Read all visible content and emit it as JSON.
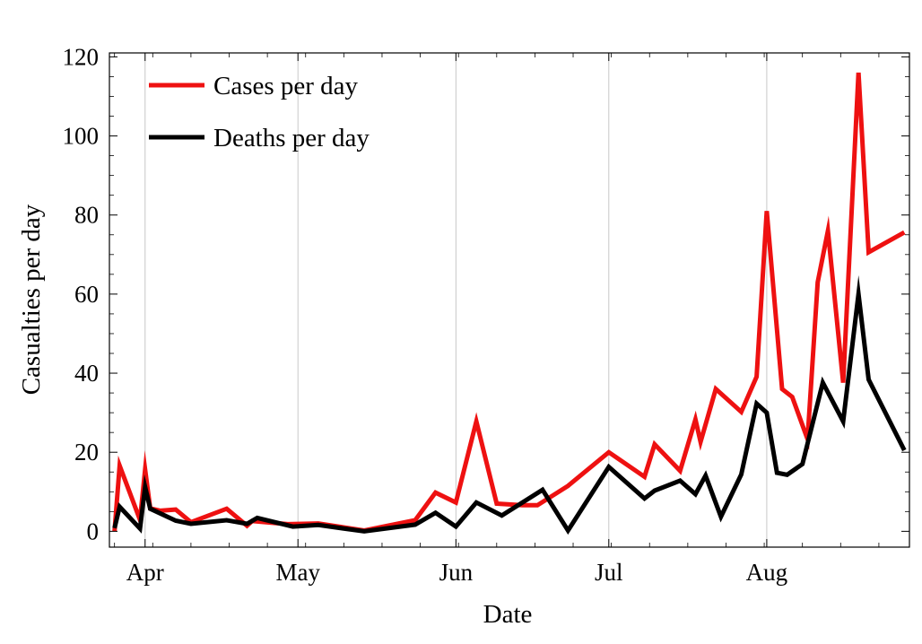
{
  "chart_data": {
    "type": "line",
    "title": "",
    "xlabel": "Date",
    "ylabel": "Casualties per day",
    "xlim": [
      "2020-03-25",
      "2020-08-29"
    ],
    "ylim": [
      -4,
      121
    ],
    "x_ticks": [
      {
        "date": "2020-04-01",
        "label": "Apr"
      },
      {
        "date": "2020-05-01",
        "label": "May"
      },
      {
        "date": "2020-06-01",
        "label": "Jun"
      },
      {
        "date": "2020-07-01",
        "label": "Jul"
      },
      {
        "date": "2020-08-01",
        "label": "Aug"
      }
    ],
    "y_ticks": [
      0,
      20,
      40,
      60,
      80,
      100,
      120
    ],
    "grid": "vertical lines at month starts",
    "legend": "top-left",
    "series": [
      {
        "name": "Cases per day",
        "color": "#ee1111",
        "points": [
          [
            "2020-03-26",
            0
          ],
          [
            "2020-03-27",
            16.6
          ],
          [
            "2020-03-31",
            2.9
          ],
          [
            "2020-04-01",
            15.6
          ],
          [
            "2020-04-02",
            5.8
          ],
          [
            "2020-04-04",
            5.2
          ],
          [
            "2020-04-07",
            5.5
          ],
          [
            "2020-04-10",
            2.3
          ],
          [
            "2020-04-17",
            5.7
          ],
          [
            "2020-04-21",
            1.4
          ],
          [
            "2020-04-22",
            2.6
          ],
          [
            "2020-04-29",
            1.8
          ],
          [
            "2020-05-05",
            2.0
          ],
          [
            "2020-05-14",
            0.2
          ],
          [
            "2020-05-24",
            2.8
          ],
          [
            "2020-05-28",
            9.8
          ],
          [
            "2020-06-01",
            7.3
          ],
          [
            "2020-06-05",
            27.8
          ],
          [
            "2020-06-09",
            7.0
          ],
          [
            "2020-06-14",
            6.6
          ],
          [
            "2020-06-17",
            6.6
          ],
          [
            "2020-06-23",
            11.5
          ],
          [
            "2020-07-01",
            20.0
          ],
          [
            "2020-07-08",
            13.8
          ],
          [
            "2020-07-10",
            22.0
          ],
          [
            "2020-07-15",
            15.3
          ],
          [
            "2020-07-18",
            28.3
          ],
          [
            "2020-07-19",
            22.6
          ],
          [
            "2020-07-22",
            36.0
          ],
          [
            "2020-07-27",
            30.2
          ],
          [
            "2020-07-30",
            39.1
          ],
          [
            "2020-08-01",
            81.0
          ],
          [
            "2020-08-04",
            36.0
          ],
          [
            "2020-08-06",
            34.0
          ],
          [
            "2020-08-09",
            23.3
          ],
          [
            "2020-08-11",
            63.0
          ],
          [
            "2020-08-13",
            76.0
          ],
          [
            "2020-08-16",
            37.6
          ],
          [
            "2020-08-19",
            116.0
          ],
          [
            "2020-08-21",
            70.6
          ],
          [
            "2020-08-28",
            75.6
          ]
        ]
      },
      {
        "name": "Deaths per day",
        "color": "#000000",
        "points": [
          [
            "2020-03-26",
            0.8
          ],
          [
            "2020-03-27",
            6.2
          ],
          [
            "2020-03-31",
            0.7
          ],
          [
            "2020-04-01",
            11.2
          ],
          [
            "2020-04-02",
            5.7
          ],
          [
            "2020-04-07",
            2.7
          ],
          [
            "2020-04-10",
            1.9
          ],
          [
            "2020-04-17",
            2.8
          ],
          [
            "2020-04-21",
            1.9
          ],
          [
            "2020-04-23",
            3.4
          ],
          [
            "2020-04-30",
            1.2
          ],
          [
            "2020-05-05",
            1.6
          ],
          [
            "2020-05-14",
            0.0
          ],
          [
            "2020-05-24",
            1.7
          ],
          [
            "2020-05-28",
            4.7
          ],
          [
            "2020-06-01",
            1.2
          ],
          [
            "2020-06-05",
            7.3
          ],
          [
            "2020-06-10",
            4.0
          ],
          [
            "2020-06-18",
            10.5
          ],
          [
            "2020-06-23",
            0.2
          ],
          [
            "2020-07-01",
            16.3
          ],
          [
            "2020-07-08",
            8.3
          ],
          [
            "2020-07-10",
            10.3
          ],
          [
            "2020-07-15",
            12.8
          ],
          [
            "2020-07-18",
            9.4
          ],
          [
            "2020-07-20",
            14.1
          ],
          [
            "2020-07-23",
            3.7
          ],
          [
            "2020-07-27",
            14.4
          ],
          [
            "2020-07-30",
            32.3
          ],
          [
            "2020-08-01",
            30.0
          ],
          [
            "2020-08-03",
            14.8
          ],
          [
            "2020-08-05",
            14.3
          ],
          [
            "2020-08-08",
            17.0
          ],
          [
            "2020-08-12",
            37.6
          ],
          [
            "2020-08-16",
            27.8
          ],
          [
            "2020-08-19",
            60.0
          ],
          [
            "2020-08-21",
            38.4
          ],
          [
            "2020-08-28",
            20.5
          ]
        ]
      }
    ]
  }
}
